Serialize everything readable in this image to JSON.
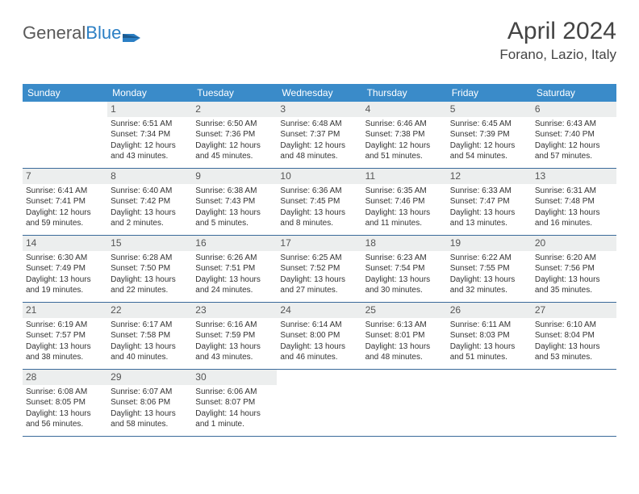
{
  "logo": {
    "text1": "General",
    "text2": "Blue",
    "flag_color": "#2b7fc4"
  },
  "header": {
    "month": "April 2024",
    "location": "Forano, Lazio, Italy"
  },
  "colors": {
    "header_bg": "#3a8bc9",
    "header_text": "#ffffff",
    "day_num_bg": "#eceeee",
    "week_border": "#3a6a9a",
    "text": "#333333"
  },
  "dayNames": [
    "Sunday",
    "Monday",
    "Tuesday",
    "Wednesday",
    "Thursday",
    "Friday",
    "Saturday"
  ],
  "weeks": [
    [
      null,
      {
        "n": "1",
        "sr": "6:51 AM",
        "ss": "7:34 PM",
        "dl": "12 hours and 43 minutes."
      },
      {
        "n": "2",
        "sr": "6:50 AM",
        "ss": "7:36 PM",
        "dl": "12 hours and 45 minutes."
      },
      {
        "n": "3",
        "sr": "6:48 AM",
        "ss": "7:37 PM",
        "dl": "12 hours and 48 minutes."
      },
      {
        "n": "4",
        "sr": "6:46 AM",
        "ss": "7:38 PM",
        "dl": "12 hours and 51 minutes."
      },
      {
        "n": "5",
        "sr": "6:45 AM",
        "ss": "7:39 PM",
        "dl": "12 hours and 54 minutes."
      },
      {
        "n": "6",
        "sr": "6:43 AM",
        "ss": "7:40 PM",
        "dl": "12 hours and 57 minutes."
      }
    ],
    [
      {
        "n": "7",
        "sr": "6:41 AM",
        "ss": "7:41 PM",
        "dl": "12 hours and 59 minutes."
      },
      {
        "n": "8",
        "sr": "6:40 AM",
        "ss": "7:42 PM",
        "dl": "13 hours and 2 minutes."
      },
      {
        "n": "9",
        "sr": "6:38 AM",
        "ss": "7:43 PM",
        "dl": "13 hours and 5 minutes."
      },
      {
        "n": "10",
        "sr": "6:36 AM",
        "ss": "7:45 PM",
        "dl": "13 hours and 8 minutes."
      },
      {
        "n": "11",
        "sr": "6:35 AM",
        "ss": "7:46 PM",
        "dl": "13 hours and 11 minutes."
      },
      {
        "n": "12",
        "sr": "6:33 AM",
        "ss": "7:47 PM",
        "dl": "13 hours and 13 minutes."
      },
      {
        "n": "13",
        "sr": "6:31 AM",
        "ss": "7:48 PM",
        "dl": "13 hours and 16 minutes."
      }
    ],
    [
      {
        "n": "14",
        "sr": "6:30 AM",
        "ss": "7:49 PM",
        "dl": "13 hours and 19 minutes."
      },
      {
        "n": "15",
        "sr": "6:28 AM",
        "ss": "7:50 PM",
        "dl": "13 hours and 22 minutes."
      },
      {
        "n": "16",
        "sr": "6:26 AM",
        "ss": "7:51 PM",
        "dl": "13 hours and 24 minutes."
      },
      {
        "n": "17",
        "sr": "6:25 AM",
        "ss": "7:52 PM",
        "dl": "13 hours and 27 minutes."
      },
      {
        "n": "18",
        "sr": "6:23 AM",
        "ss": "7:54 PM",
        "dl": "13 hours and 30 minutes."
      },
      {
        "n": "19",
        "sr": "6:22 AM",
        "ss": "7:55 PM",
        "dl": "13 hours and 32 minutes."
      },
      {
        "n": "20",
        "sr": "6:20 AM",
        "ss": "7:56 PM",
        "dl": "13 hours and 35 minutes."
      }
    ],
    [
      {
        "n": "21",
        "sr": "6:19 AM",
        "ss": "7:57 PM",
        "dl": "13 hours and 38 minutes."
      },
      {
        "n": "22",
        "sr": "6:17 AM",
        "ss": "7:58 PM",
        "dl": "13 hours and 40 minutes."
      },
      {
        "n": "23",
        "sr": "6:16 AM",
        "ss": "7:59 PM",
        "dl": "13 hours and 43 minutes."
      },
      {
        "n": "24",
        "sr": "6:14 AM",
        "ss": "8:00 PM",
        "dl": "13 hours and 46 minutes."
      },
      {
        "n": "25",
        "sr": "6:13 AM",
        "ss": "8:01 PM",
        "dl": "13 hours and 48 minutes."
      },
      {
        "n": "26",
        "sr": "6:11 AM",
        "ss": "8:03 PM",
        "dl": "13 hours and 51 minutes."
      },
      {
        "n": "27",
        "sr": "6:10 AM",
        "ss": "8:04 PM",
        "dl": "13 hours and 53 minutes."
      }
    ],
    [
      {
        "n": "28",
        "sr": "6:08 AM",
        "ss": "8:05 PM",
        "dl": "13 hours and 56 minutes."
      },
      {
        "n": "29",
        "sr": "6:07 AM",
        "ss": "8:06 PM",
        "dl": "13 hours and 58 minutes."
      },
      {
        "n": "30",
        "sr": "6:06 AM",
        "ss": "8:07 PM",
        "dl": "14 hours and 1 minute."
      },
      null,
      null,
      null,
      null
    ]
  ],
  "labels": {
    "sunrise": "Sunrise: ",
    "sunset": "Sunset: ",
    "daylight": "Daylight: "
  }
}
